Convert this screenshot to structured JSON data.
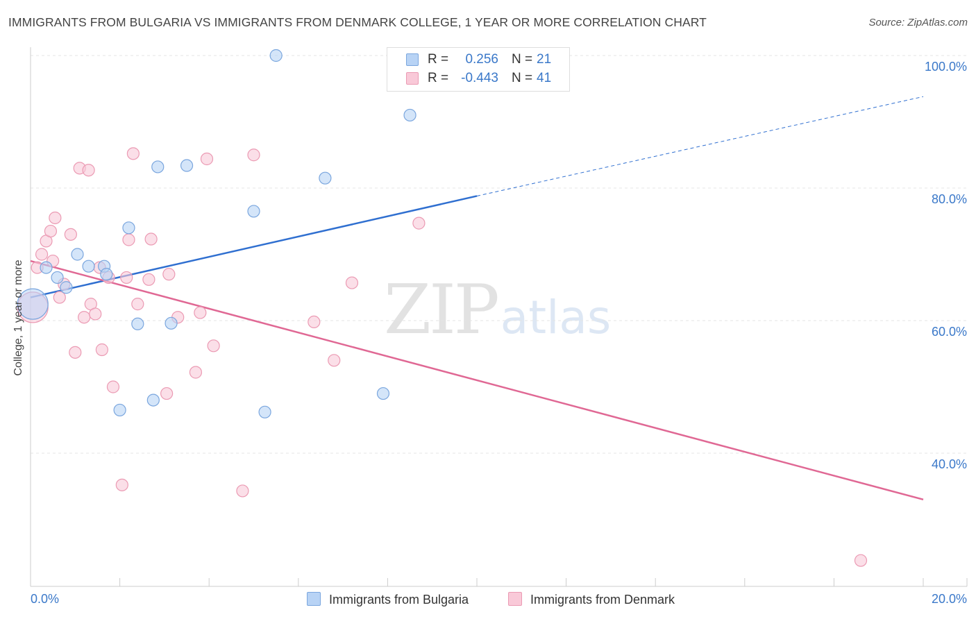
{
  "header": {
    "title": "IMMIGRANTS FROM BULGARIA VS IMMIGRANTS FROM DENMARK COLLEGE, 1 YEAR OR MORE CORRELATION CHART",
    "source": "Source: ZipAtlas.com"
  },
  "watermark": {
    "zip": "ZIP",
    "atlas": "atlas"
  },
  "stats": {
    "rows": [
      {
        "r_label": "R =",
        "r_value": "0.256",
        "n_label": "N =",
        "n_value": "21"
      },
      {
        "r_label": "R =",
        "r_value": "-0.443",
        "n_label": "N =",
        "n_value": "41"
      }
    ]
  },
  "legend": {
    "items": [
      {
        "label": "Immigrants from Bulgaria"
      },
      {
        "label": "Immigrants from Denmark"
      }
    ]
  },
  "colors": {
    "bulgaria_fill": "#b8d3f5",
    "bulgaria_stroke": "#7aa6de",
    "bulgaria_line": "#2f6fd0",
    "denmark_fill": "#f9c9d8",
    "denmark_stroke": "#eb9ab3",
    "denmark_line": "#e06894",
    "axis_label": "#3a78c9",
    "grid": "#e4e4e4"
  },
  "chart_data": {
    "type": "scatter",
    "title": "IMMIGRANTS FROM BULGARIA VS IMMIGRANTS FROM DENMARK COLLEGE, 1 YEAR OR MORE CORRELATION CHART",
    "xlabel": "",
    "ylabel": "College, 1 year or more",
    "xlim": [
      0,
      20
    ],
    "ylim": [
      20,
      104
    ],
    "x_tick_labels": [
      "0.0%",
      "20.0%"
    ],
    "y_tick_labels": [
      "40.0%",
      "60.0%",
      "80.0%",
      "100.0%"
    ],
    "y_ticks": [
      40,
      60,
      80,
      100
    ],
    "grid": true,
    "legend_position": "bottom",
    "series": [
      {
        "name": "Immigrants from Bulgaria",
        "color": "#b8d3f5",
        "points": [
          {
            "x": 0.05,
            "y": 62.5,
            "big": true
          },
          {
            "x": 0.35,
            "y": 68.0
          },
          {
            "x": 0.6,
            "y": 66.5
          },
          {
            "x": 0.8,
            "y": 65.0
          },
          {
            "x": 1.05,
            "y": 70.0
          },
          {
            "x": 1.3,
            "y": 68.2
          },
          {
            "x": 1.65,
            "y": 68.2
          },
          {
            "x": 1.7,
            "y": 67.0
          },
          {
            "x": 2.2,
            "y": 74.0
          },
          {
            "x": 2.4,
            "y": 59.5
          },
          {
            "x": 2.85,
            "y": 83.2
          },
          {
            "x": 3.5,
            "y": 83.4
          },
          {
            "x": 3.15,
            "y": 59.6
          },
          {
            "x": 5.0,
            "y": 76.5
          },
          {
            "x": 5.5,
            "y": 100.0
          },
          {
            "x": 6.6,
            "y": 81.5
          },
          {
            "x": 8.5,
            "y": 91.0
          },
          {
            "x": 2.0,
            "y": 46.5
          },
          {
            "x": 2.75,
            "y": 48.0
          },
          {
            "x": 5.25,
            "y": 46.2
          },
          {
            "x": 7.9,
            "y": 49.0
          }
        ],
        "trend": {
          "x0": 0.0,
          "y0": 63.5,
          "x1": 10.0,
          "y1": 78.8,
          "dash_x1": 20.0,
          "dash_y1": 93.8
        }
      },
      {
        "name": "Immigrants from Denmark",
        "color": "#f9c9d8",
        "points": [
          {
            "x": 0.05,
            "y": 62.0,
            "big": true
          },
          {
            "x": 0.15,
            "y": 68.0
          },
          {
            "x": 0.25,
            "y": 70.0
          },
          {
            "x": 0.35,
            "y": 72.0
          },
          {
            "x": 0.45,
            "y": 73.5
          },
          {
            "x": 0.55,
            "y": 75.5
          },
          {
            "x": 0.65,
            "y": 63.5
          },
          {
            "x": 0.75,
            "y": 65.5
          },
          {
            "x": 0.9,
            "y": 73.0
          },
          {
            "x": 1.0,
            "y": 55.2
          },
          {
            "x": 1.1,
            "y": 83.0
          },
          {
            "x": 1.3,
            "y": 82.7
          },
          {
            "x": 1.2,
            "y": 60.5
          },
          {
            "x": 1.35,
            "y": 62.5
          },
          {
            "x": 1.45,
            "y": 61.0
          },
          {
            "x": 1.55,
            "y": 68.0
          },
          {
            "x": 1.6,
            "y": 55.6
          },
          {
            "x": 1.75,
            "y": 66.5
          },
          {
            "x": 1.85,
            "y": 50.0
          },
          {
            "x": 2.05,
            "y": 35.2
          },
          {
            "x": 2.15,
            "y": 66.5
          },
          {
            "x": 2.2,
            "y": 72.2
          },
          {
            "x": 2.3,
            "y": 85.2
          },
          {
            "x": 2.4,
            "y": 62.5
          },
          {
            "x": 2.65,
            "y": 66.2
          },
          {
            "x": 2.7,
            "y": 72.3
          },
          {
            "x": 3.05,
            "y": 49.0
          },
          {
            "x": 3.1,
            "y": 67.0
          },
          {
            "x": 3.3,
            "y": 60.5
          },
          {
            "x": 3.7,
            "y": 52.2
          },
          {
            "x": 3.8,
            "y": 61.2
          },
          {
            "x": 3.95,
            "y": 84.4
          },
          {
            "x": 4.1,
            "y": 56.2
          },
          {
            "x": 4.75,
            "y": 34.3
          },
          {
            "x": 5.0,
            "y": 85.0
          },
          {
            "x": 6.35,
            "y": 59.8
          },
          {
            "x": 6.8,
            "y": 54.0
          },
          {
            "x": 7.2,
            "y": 65.7
          },
          {
            "x": 8.7,
            "y": 74.7
          },
          {
            "x": 18.6,
            "y": 23.8
          },
          {
            "x": 0.5,
            "y": 69.0
          }
        ],
        "trend": {
          "x0": 0.0,
          "y0": 69.0,
          "x1": 20.0,
          "y1": 33.0
        }
      }
    ]
  }
}
